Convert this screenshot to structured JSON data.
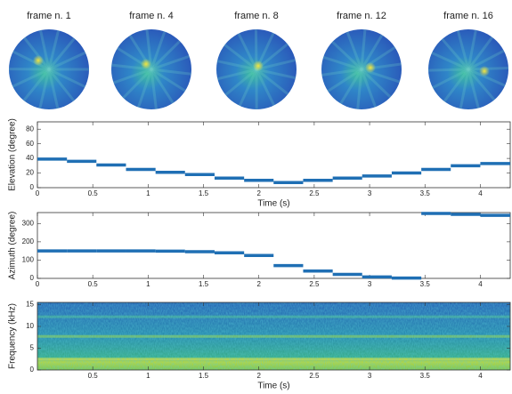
{
  "frames": {
    "titles": [
      "frame n. 1",
      "frame n. 4",
      "frame n. 8",
      "frame n. 12",
      "frame n. 16"
    ]
  },
  "chart_data": [
    {
      "type": "step",
      "ylabel": "Elevation (degree)",
      "xlabel": "Time (s)",
      "color": "#1f6fb4",
      "x": [
        0,
        0.267,
        0.533,
        0.8,
        1.067,
        1.333,
        1.6,
        1.867,
        2.133,
        2.4,
        2.667,
        2.933,
        3.2,
        3.467,
        3.733,
        4.0
      ],
      "values": [
        39,
        36,
        31,
        25,
        21,
        18,
        13,
        10,
        7,
        10,
        13,
        16,
        20,
        25,
        30,
        33
      ],
      "xlim": [
        0,
        4.27
      ],
      "ylim": [
        0,
        90
      ],
      "xticks": [
        0,
        0.5,
        1,
        1.5,
        2,
        2.5,
        3,
        3.5,
        4
      ],
      "yticks": [
        0,
        20,
        40,
        60,
        80
      ]
    },
    {
      "type": "step",
      "ylabel": "Azimuth (degree)",
      "color": "#1f6fb4",
      "x": [
        0,
        0.267,
        0.533,
        0.8,
        1.067,
        1.333,
        1.6,
        1.867,
        2.133,
        2.4,
        2.667,
        2.933,
        3.2,
        3.467,
        3.733,
        4.0
      ],
      "values": [
        150,
        150,
        150,
        150,
        149,
        146,
        140,
        125,
        70,
        40,
        22,
        8,
        2,
        355,
        350,
        345
      ],
      "xlim": [
        0,
        4.27
      ],
      "ylim": [
        0,
        360
      ],
      "xticks": [
        0,
        0.5,
        1,
        1.5,
        2,
        2.5,
        3,
        3.5,
        4
      ],
      "yticks": [
        0,
        100,
        200,
        300
      ]
    },
    {
      "type": "spectrogram",
      "ylabel": "Frequency (kHz)",
      "xlabel": "Time (s)",
      "xlim": [
        0,
        4.27
      ],
      "ylim": [
        0,
        15.5
      ],
      "xticks": [
        0.5,
        1,
        1.5,
        2,
        2.5,
        3,
        3.5,
        4
      ],
      "yticks": [
        0,
        5,
        10,
        15
      ]
    }
  ]
}
